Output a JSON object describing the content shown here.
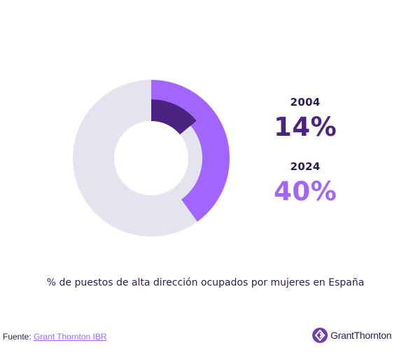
{
  "chart_data": {
    "type": "pie",
    "variant": "donut",
    "series": [
      {
        "name": "2004",
        "values": [
          14
        ],
        "color": "#4b2482"
      },
      {
        "name": "2024",
        "values": [
          40
        ],
        "color": "#a266ff"
      }
    ],
    "track_color": "#e6e3f0"
  },
  "stats": [
    {
      "year": "2004",
      "value": "14%",
      "color": "#4b2482"
    },
    {
      "year": "2024",
      "value": "40%",
      "color": "#a266ff"
    }
  ],
  "caption": "% de puestos de alta dirección ocupados por mujeres en España",
  "footer": {
    "source_prefix": "Fuente: ",
    "source_link": "Grant Thornton IBR"
  },
  "brand": {
    "name": "GrantThornton",
    "icon": "grant-thornton-logo-icon",
    "color": "#6a3fb0"
  }
}
